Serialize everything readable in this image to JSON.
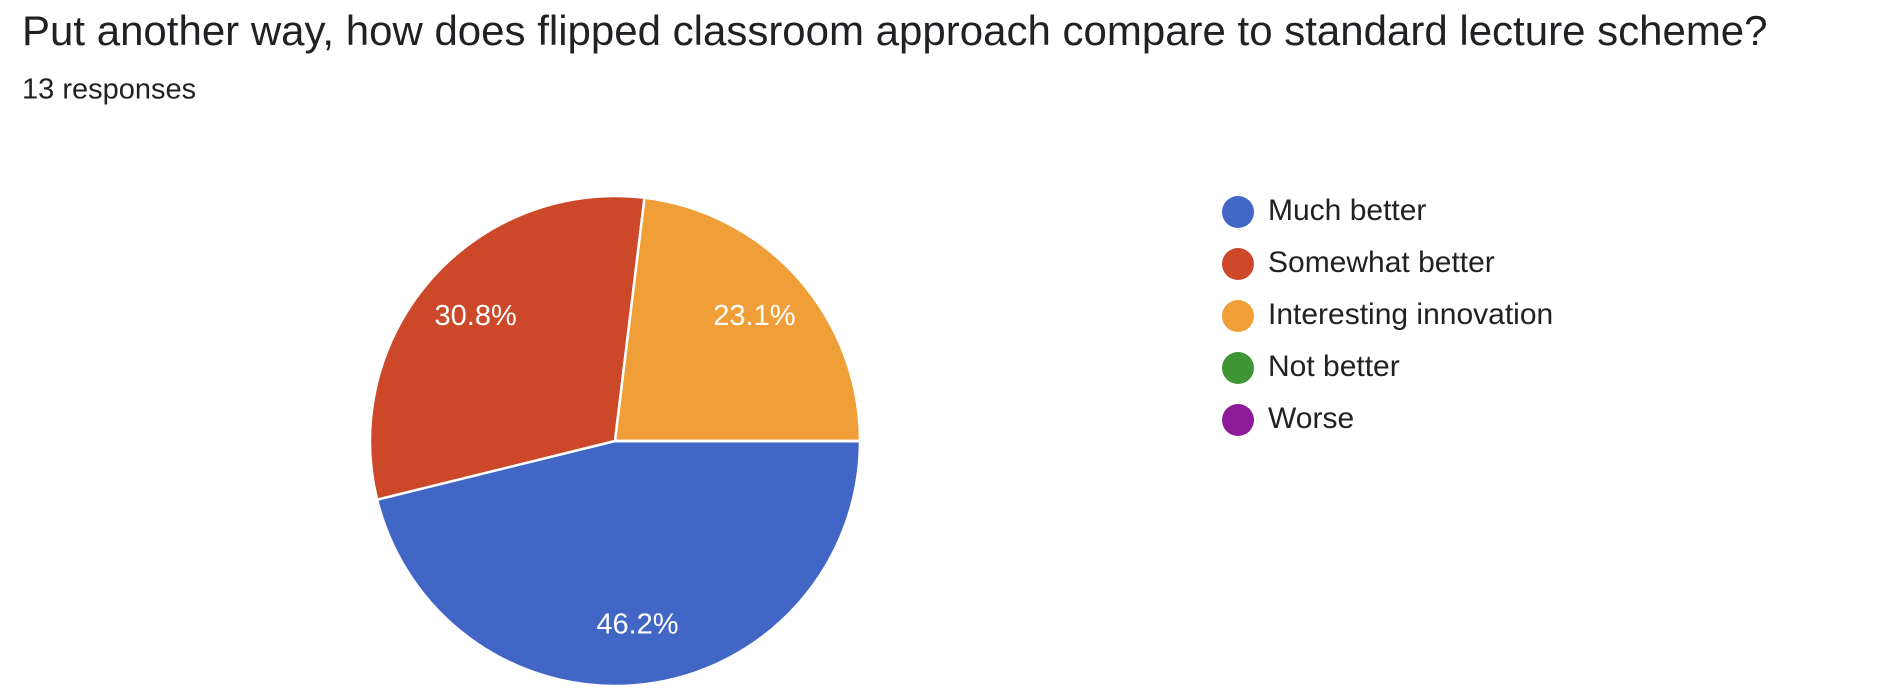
{
  "chart_data": {
    "type": "pie",
    "title": "Put another way, how does flipped classroom approach compare to standard lecture scheme?",
    "subtitle": "13 responses",
    "categories": [
      "Much better",
      "Somewhat better",
      "Interesting innovation",
      "Not better",
      "Worse"
    ],
    "values": [
      46.2,
      30.8,
      23.1,
      0,
      0
    ],
    "value_labels": [
      "46.2%",
      "30.8%",
      "23.1%",
      null,
      null
    ],
    "colors": [
      "#4166c6",
      "#cc4828",
      "#f09f38",
      "#3f9535",
      "#8d1a98"
    ],
    "legend": "right"
  }
}
